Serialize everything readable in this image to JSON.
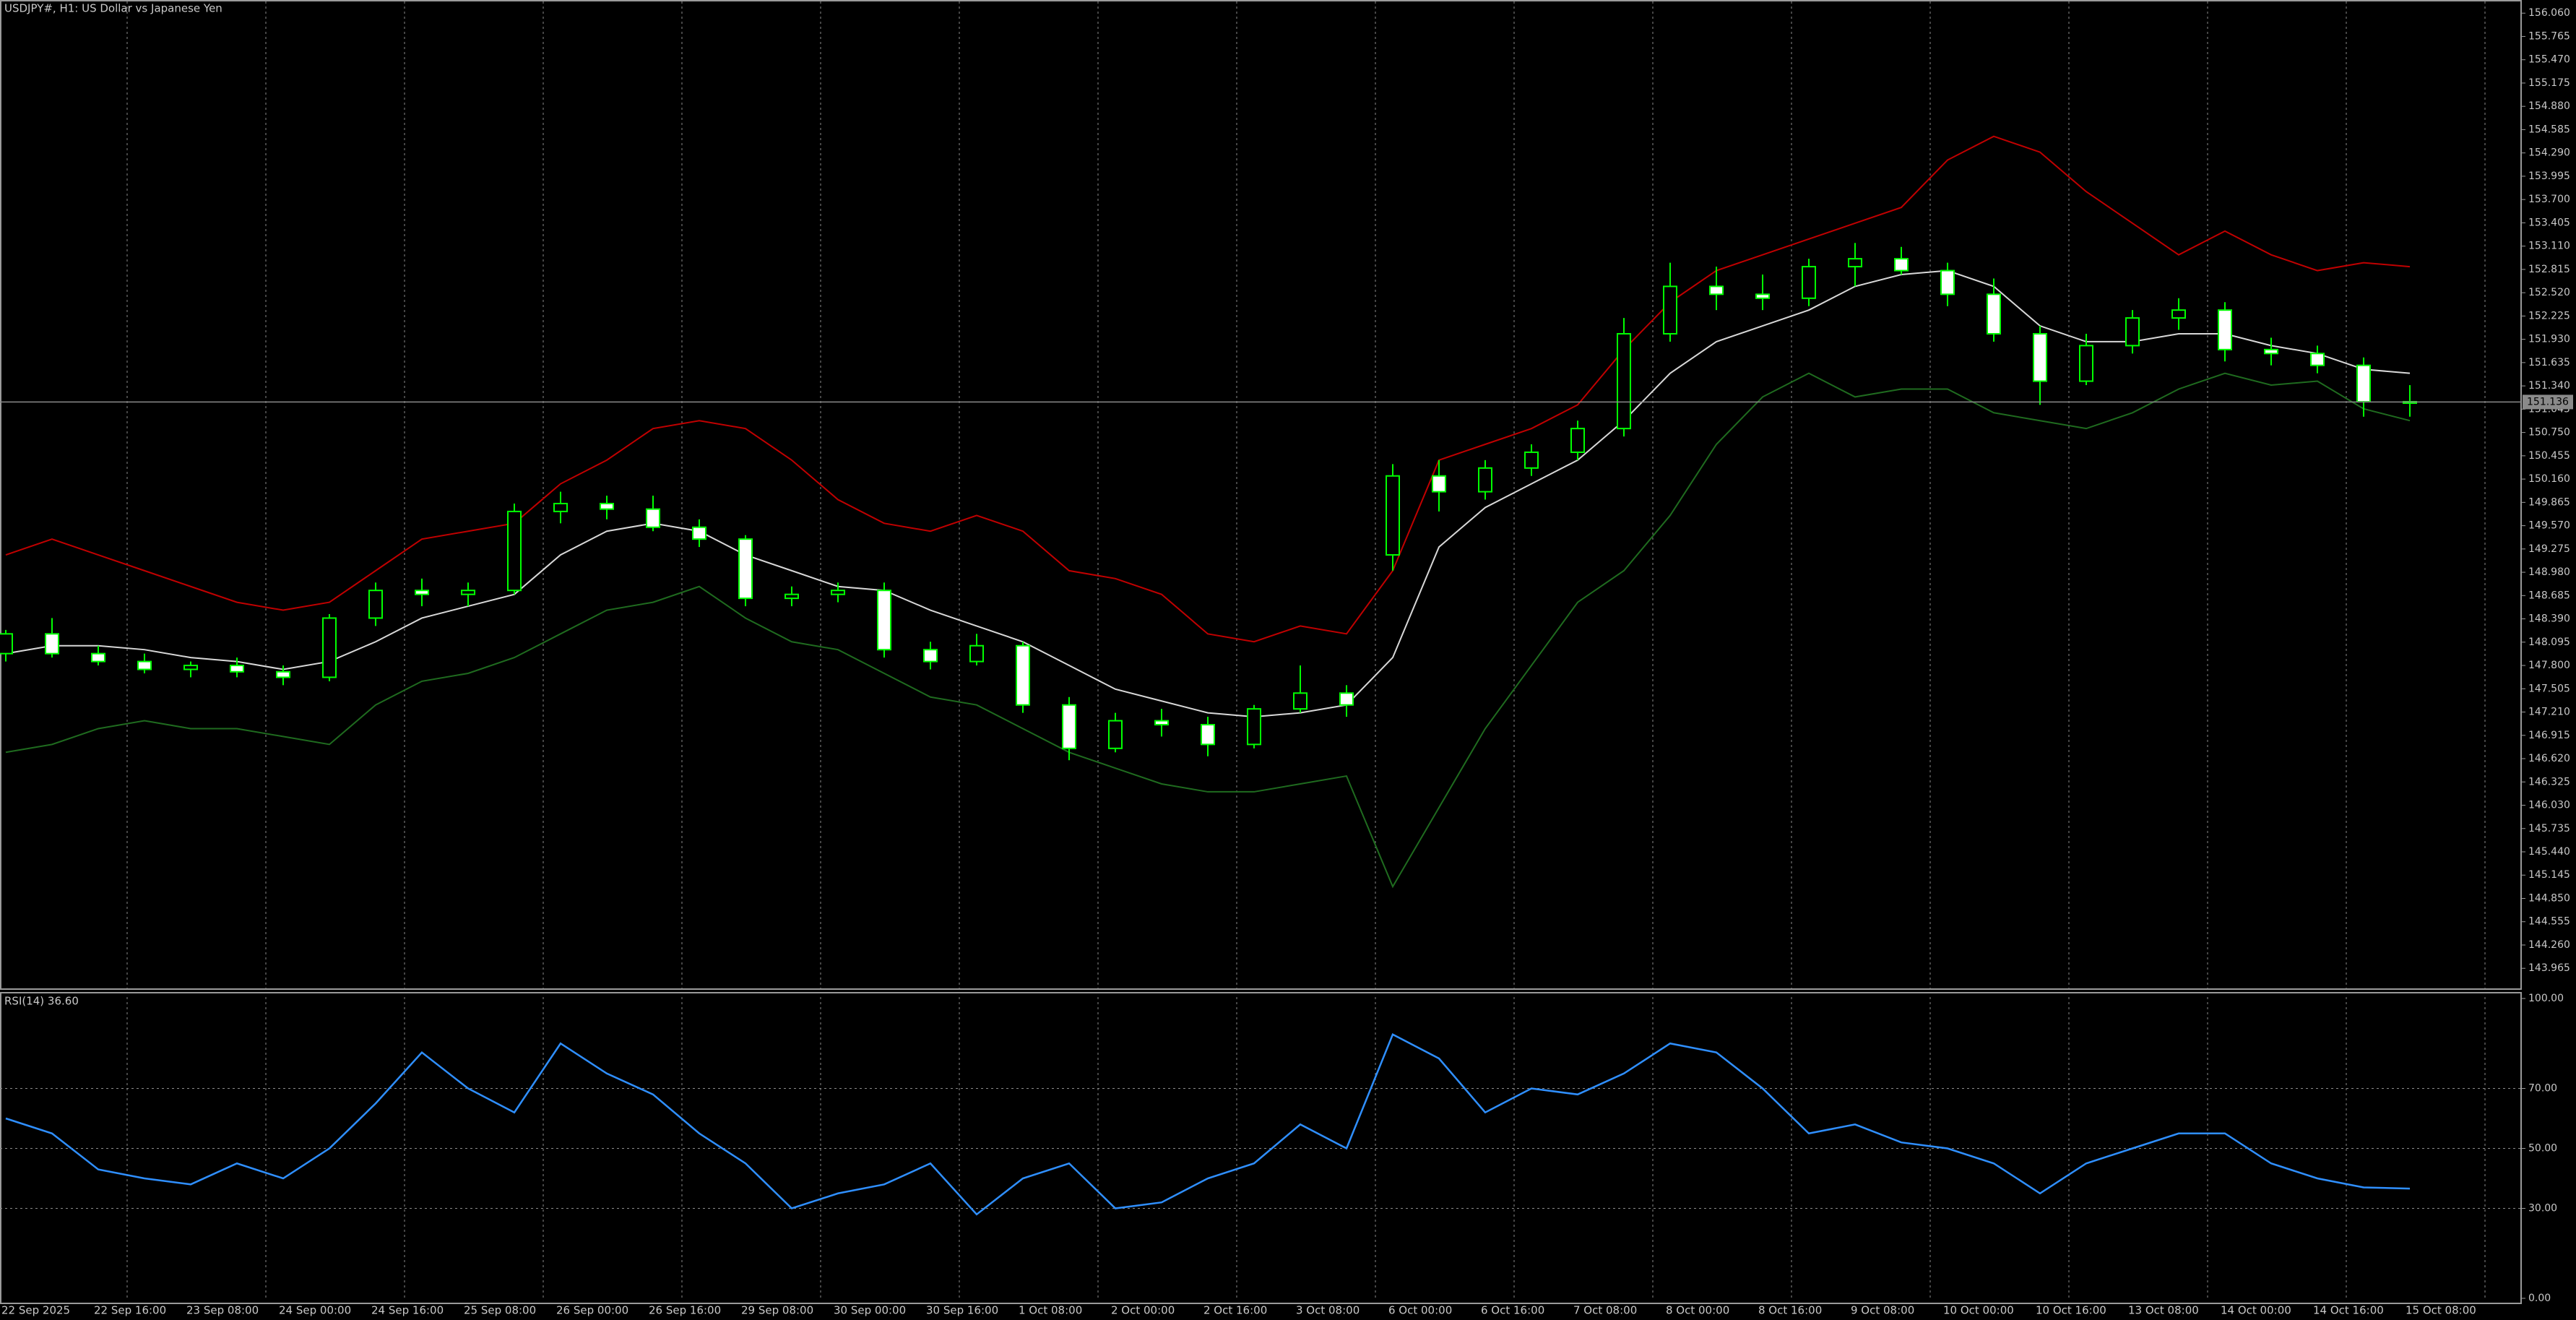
{
  "chart_data": [
    {
      "type": "candlestick",
      "title": "USDJPY#, H1:  US Dollar vs Japanese Yen",
      "categories": [
        "22 Sep 2025",
        null,
        "22 Sep 16:00",
        null,
        "23 Sep 08:00",
        null,
        "24 Sep 00:00",
        null,
        "24 Sep 16:00",
        null,
        "25 Sep 08:00",
        null,
        "26 Sep 00:00",
        null,
        "26 Sep 16:00",
        null,
        "29 Sep 08:00",
        null,
        "30 Sep 00:00",
        null,
        "30 Sep 16:00",
        null,
        "1 Oct 08:00",
        null,
        "2 Oct 00:00",
        null,
        "2 Oct 16:00",
        null,
        "3 Oct 08:00",
        null,
        "6 Oct 00:00",
        null,
        "6 Oct 16:00",
        null,
        "7 Oct 08:00",
        null,
        "8 Oct 00:00",
        null,
        "8 Oct 16:00",
        null,
        "9 Oct 08:00",
        null,
        "10 Oct 00:00",
        null,
        "10 Oct 16:00",
        null,
        "13 Oct 08:00",
        null,
        "14 Oct 00:00",
        null,
        "14 Oct 16:00",
        null,
        "15 Oct 08:00"
      ],
      "open": [
        147.95,
        148.2,
        147.95,
        147.85,
        147.75,
        147.8,
        147.72,
        147.65,
        148.4,
        148.75,
        148.7,
        148.75,
        149.75,
        149.85,
        149.78,
        149.55,
        149.4,
        148.65,
        148.7,
        148.75,
        148.0,
        147.85,
        148.05,
        147.3,
        146.75,
        147.1,
        147.05,
        146.8,
        147.25,
        147.45,
        149.2,
        150.2,
        150.0,
        150.3,
        150.5,
        150.8,
        152.0,
        152.6,
        152.5,
        152.45,
        152.85,
        152.95,
        152.8,
        152.5,
        152.0,
        151.4,
        151.85,
        152.2,
        152.3,
        151.8,
        151.75,
        151.6,
        151.14
      ],
      "high": [
        148.25,
        148.4,
        148.05,
        147.95,
        147.85,
        147.9,
        147.8,
        148.45,
        148.85,
        148.9,
        148.85,
        149.85,
        150.0,
        149.95,
        149.95,
        149.65,
        149.45,
        148.8,
        148.85,
        148.85,
        148.1,
        148.2,
        148.1,
        147.4,
        147.2,
        147.25,
        147.15,
        147.3,
        147.8,
        147.55,
        150.35,
        150.4,
        150.4,
        150.6,
        150.9,
        152.2,
        152.9,
        152.85,
        152.75,
        152.95,
        153.15,
        153.1,
        152.9,
        152.7,
        152.1,
        152.0,
        152.3,
        152.45,
        152.4,
        151.95,
        151.85,
        151.7,
        151.35
      ],
      "low": [
        147.85,
        147.9,
        147.8,
        147.7,
        147.65,
        147.65,
        147.55,
        147.6,
        148.3,
        148.55,
        148.55,
        148.7,
        149.6,
        149.65,
        149.5,
        149.3,
        148.55,
        148.55,
        148.6,
        147.9,
        147.75,
        147.8,
        147.2,
        146.6,
        146.7,
        146.9,
        146.65,
        146.75,
        147.2,
        147.15,
        149.0,
        149.75,
        149.9,
        150.2,
        150.4,
        150.7,
        151.9,
        152.3,
        152.3,
        152.35,
        152.6,
        152.75,
        152.35,
        151.9,
        151.1,
        151.35,
        151.75,
        152.05,
        151.65,
        151.6,
        151.5,
        150.95,
        150.95
      ],
      "close": [
        148.2,
        147.95,
        147.85,
        147.75,
        147.8,
        147.72,
        147.65,
        148.4,
        148.75,
        148.7,
        148.75,
        149.75,
        149.85,
        149.78,
        149.55,
        149.4,
        148.65,
        148.7,
        148.75,
        148.0,
        147.85,
        148.05,
        147.3,
        146.75,
        147.1,
        147.05,
        146.8,
        147.25,
        147.45,
        147.3,
        150.2,
        150.0,
        150.3,
        150.5,
        150.8,
        152.0,
        152.6,
        152.5,
        152.45,
        152.85,
        152.95,
        152.8,
        152.5,
        152.0,
        151.4,
        151.85,
        152.2,
        152.3,
        151.8,
        151.75,
        151.6,
        151.14,
        151.136
      ],
      "candle_color": "#00ff00",
      "up_fill": "#000000",
      "down_fill": "#ffffff",
      "overlays": [
        {
          "color": "#c00000",
          "values": [
            149.2,
            149.4,
            149.2,
            149.0,
            148.8,
            148.6,
            148.5,
            148.6,
            149.0,
            149.4,
            149.5,
            149.6,
            150.1,
            150.4,
            150.8,
            150.9,
            150.8,
            150.4,
            149.9,
            149.6,
            149.5,
            149.7,
            149.5,
            149.0,
            148.9,
            148.7,
            148.2,
            148.1,
            148.3,
            148.2,
            149.0,
            150.4,
            150.6,
            150.8,
            151.1,
            151.8,
            152.4,
            152.8,
            153.0,
            153.2,
            153.4,
            153.6,
            154.2,
            154.5,
            154.3,
            153.8,
            153.4,
            153.0,
            153.3,
            153.0,
            152.8,
            152.9,
            152.85
          ]
        },
        {
          "color": "#d8d8d8",
          "values": [
            147.95,
            148.05,
            148.05,
            148.0,
            147.9,
            147.85,
            147.75,
            147.85,
            148.1,
            148.4,
            148.55,
            148.7,
            149.2,
            149.5,
            149.6,
            149.5,
            149.2,
            149.0,
            148.8,
            148.75,
            148.5,
            148.3,
            148.1,
            147.8,
            147.5,
            147.35,
            147.2,
            147.15,
            147.2,
            147.3,
            147.9,
            149.3,
            149.8,
            150.1,
            150.4,
            150.9,
            151.5,
            151.9,
            152.1,
            152.3,
            152.6,
            152.75,
            152.8,
            152.6,
            152.1,
            151.9,
            151.9,
            152.0,
            152.0,
            151.85,
            151.75,
            151.55,
            151.5
          ]
        },
        {
          "color": "#1f6b1f",
          "values": [
            146.7,
            146.8,
            147.0,
            147.1,
            147.0,
            147.0,
            146.9,
            146.8,
            147.3,
            147.6,
            147.7,
            147.9,
            148.2,
            148.5,
            148.6,
            148.8,
            148.4,
            148.1,
            148.0,
            147.7,
            147.4,
            147.3,
            147.0,
            146.7,
            146.5,
            146.3,
            146.2,
            146.2,
            146.3,
            146.4,
            145.0,
            146.0,
            147.0,
            147.8,
            148.6,
            149.0,
            149.7,
            150.6,
            151.2,
            151.5,
            151.2,
            151.3,
            151.3,
            151.0,
            150.9,
            150.8,
            151.0,
            151.3,
            151.5,
            151.35,
            151.4,
            151.05,
            150.9
          ]
        }
      ],
      "price_line": 151.136,
      "ylim": [
        143.72,
        156.19
      ],
      "yticks": [
        {
          "value": 156.06,
          "label": "156.060"
        },
        {
          "value": 155.765,
          "label": "155.765"
        },
        {
          "value": 155.47,
          "label": "155.470"
        },
        {
          "value": 155.175,
          "label": "155.175"
        },
        {
          "value": 154.88,
          "label": "154.880"
        },
        {
          "value": 154.585,
          "label": "154.585"
        },
        {
          "value": 154.29,
          "label": "154.290"
        },
        {
          "value": 153.995,
          "label": "153.995"
        },
        {
          "value": 153.7,
          "label": "153.700"
        },
        {
          "value": 153.405,
          "label": "153.405"
        },
        {
          "value": 153.11,
          "label": "153.110"
        },
        {
          "value": 152.815,
          "label": "152.815"
        },
        {
          "value": 152.52,
          "label": "152.520"
        },
        {
          "value": 152.225,
          "label": "152.225"
        },
        {
          "value": 151.93,
          "label": "151.930"
        },
        {
          "value": 151.635,
          "label": "151.635"
        },
        {
          "value": 151.34,
          "label": "151.340"
        },
        {
          "value": 151.045,
          "label": "151.045"
        },
        {
          "value": 150.75,
          "label": "150.750"
        },
        {
          "value": 150.455,
          "label": "150.455"
        },
        {
          "value": 150.16,
          "label": "150.160"
        },
        {
          "value": 149.865,
          "label": "149.865"
        },
        {
          "value": 149.57,
          "label": "149.570"
        },
        {
          "value": 149.275,
          "label": "149.275"
        },
        {
          "value": 148.98,
          "label": "148.980"
        },
        {
          "value": 148.685,
          "label": "148.685"
        },
        {
          "value": 148.39,
          "label": "148.390"
        },
        {
          "value": 148.095,
          "label": "148.095"
        },
        {
          "value": 147.8,
          "label": "147.800"
        },
        {
          "value": 147.505,
          "label": "147.505"
        },
        {
          "value": 147.21,
          "label": "147.210"
        },
        {
          "value": 146.915,
          "label": "146.915"
        },
        {
          "value": 146.62,
          "label": "146.620"
        },
        {
          "value": 146.325,
          "label": "146.325"
        },
        {
          "value": 146.03,
          "label": "146.030"
        },
        {
          "value": 145.735,
          "label": "145.735"
        },
        {
          "value": 145.44,
          "label": "145.440"
        },
        {
          "value": 145.145,
          "label": "145.145"
        },
        {
          "value": 144.85,
          "label": "144.850"
        },
        {
          "value": 144.555,
          "label": "144.555"
        },
        {
          "value": 144.26,
          "label": "144.260"
        },
        {
          "value": 143.965,
          "label": "143.965"
        }
      ],
      "grid": true
    },
    {
      "type": "line",
      "title": "RSI(14) 36.60",
      "values": [
        60,
        55,
        43,
        40,
        38,
        45,
        40,
        50,
        65,
        82,
        70,
        62,
        85,
        75,
        68,
        55,
        45,
        30,
        35,
        38,
        45,
        28,
        40,
        45,
        30,
        32,
        40,
        45,
        58,
        50,
        88,
        80,
        62,
        70,
        68,
        75,
        85,
        82,
        70,
        55,
        58,
        52,
        50,
        45,
        35,
        45,
        50,
        55,
        55,
        45,
        40,
        37,
        36.6
      ],
      "color": "#2f8fff",
      "ylim": [
        0,
        100
      ],
      "yticks": [
        {
          "value": 100,
          "label": "100.00"
        },
        {
          "value": 70,
          "label": "70.00"
        },
        {
          "value": 50,
          "label": "50.00"
        },
        {
          "value": 30,
          "label": "30.00"
        },
        {
          "value": 0,
          "label": "0.00"
        }
      ],
      "levels": [
        70,
        50,
        30
      ]
    }
  ]
}
